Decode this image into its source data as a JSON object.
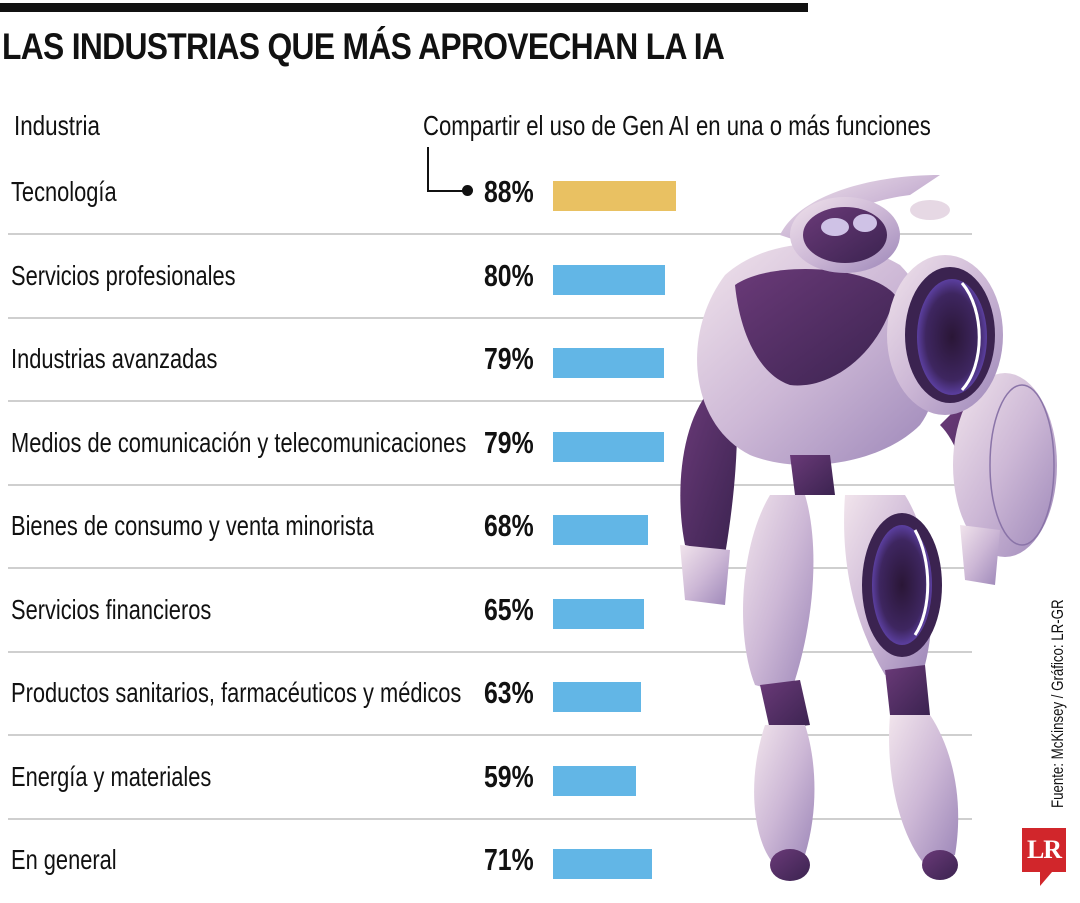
{
  "title": "LAS INDUSTRIAS QUE MÁS APROVECHAN LA IA",
  "headers": {
    "industry": "Industria",
    "share": "Compartir el uso de Gen AI en una o más funciones"
  },
  "source": "Fuente: McKinsey / Gráfico: LR-GR",
  "logo": {
    "text": "LR",
    "color": "#d1262b"
  },
  "colors": {
    "highlight": "#e9c162",
    "bar": "#62b6e6",
    "separator": "#cfcfcf"
  },
  "illustration": "robot-illustration",
  "chart_data": {
    "type": "bar",
    "orientation": "horizontal",
    "title": "LAS INDUSTRIAS QUE MÁS APROVECHAN LA IA",
    "xlabel": "Compartir el uso de Gen AI en una o más funciones",
    "ylabel": "Industria",
    "unit": "%",
    "xlim": [
      0,
      100
    ],
    "grid": false,
    "highlighted_category": "Tecnología",
    "categories": [
      "Tecnología",
      "Servicios profesionales",
      "Industrias avanzadas",
      "Medios de comunicación y telecomunicaciones",
      "Bienes de consumo y venta minorista",
      "Servicios financieros",
      "Productos sanitarios, farmacéuticos y médicos",
      "Energía y materiales",
      "En general"
    ],
    "values": [
      88,
      80,
      79,
      79,
      68,
      65,
      63,
      59,
      71
    ],
    "value_labels": [
      "88%",
      "80%",
      "79%",
      "79%",
      "68%",
      "65%",
      "63%",
      "59%",
      "71%"
    ],
    "source": "Fuente: McKinsey / Gráfico: LR-GR"
  }
}
